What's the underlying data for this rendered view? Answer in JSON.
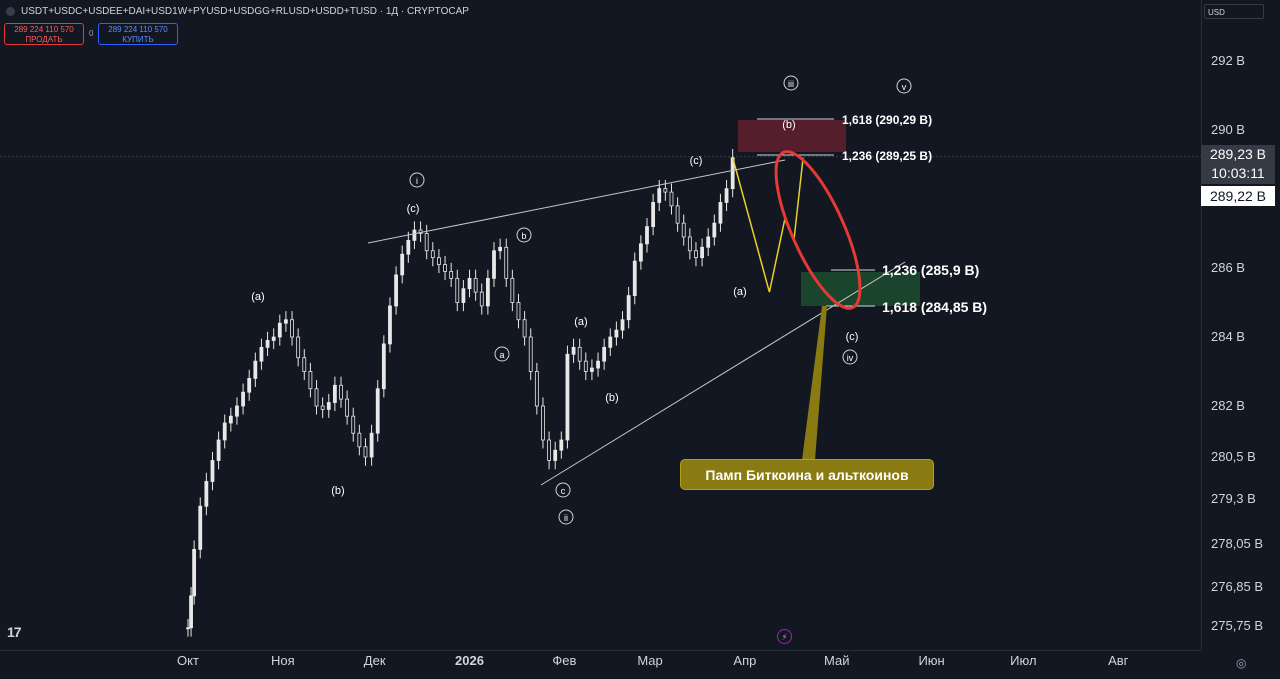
{
  "header": {
    "symbol_line": "USDT+USDC+USDEE+DAI+USD1W+PYUSD+USDGG+RLUSD+USDD+TUSD · 1Д · CRYPTOCAP",
    "sell_value": "289 224 110 570",
    "sell_label": "ПРОДАТЬ",
    "spread": "0",
    "buy_value": "289 224 110 570",
    "buy_label": "КУПИТЬ"
  },
  "axis": {
    "currency": "USD",
    "current_price": "289,23 B",
    "countdown": "10:03:11",
    "second_price": "289,22 B"
  },
  "annotations": {
    "callout": "Памп Биткоина и альткоинов",
    "fib_upper_1618": "1,618 (290,29 B)",
    "fib_upper_1236": "1,236 (289,25 B)",
    "fib_lower_1236": "1,236 (285,9 B)",
    "fib_lower_1618": "1,618 (284,85 B)"
  },
  "chart_data": {
    "type": "candlestick",
    "title": "USDT+USDC+USDEE+DAI+USD1W+PYUSD+USDGG+RLUSD+USDD+TUSD · 1Д · CRYPTOCAP",
    "xlabel": "",
    "ylabel": "",
    "x_ticks": [
      "Окт",
      "Ноя",
      "Дек",
      "2026",
      "Фев",
      "Мар",
      "Апр",
      "Май",
      "Июн",
      "Июл",
      "Авг"
    ],
    "y_ticks": [
      "292 B",
      "290 B",
      "286 B",
      "284 B",
      "282 B",
      "280,5 B",
      "279,3 B",
      "278,05 B",
      "276,85 B",
      "275,75 B"
    ],
    "y_tick_values": [
      292,
      290,
      286,
      284,
      282,
      280.5,
      279.3,
      278.05,
      276.85,
      275.75
    ],
    "colors": {
      "candles": "#e8e8e8",
      "background": "#131722",
      "ellipse": "#e53935",
      "projection": "#e8d12a",
      "target_zone_upper": "#5c1f2d",
      "target_zone_lower": "#1c4a2e"
    },
    "series": [
      {
        "points": [
          [
            "2025-10-01",
            275.7
          ],
          [
            "2025-10-02",
            276.6
          ],
          [
            "2025-10-03",
            277.9
          ],
          [
            "2025-10-05",
            279.1
          ],
          [
            "2025-10-07",
            279.8
          ],
          [
            "2025-10-09",
            280.4
          ],
          [
            "2025-10-11",
            281.0
          ],
          [
            "2025-10-13",
            281.5
          ],
          [
            "2025-10-15",
            281.7
          ],
          [
            "2025-10-17",
            282.0
          ],
          [
            "2025-10-19",
            282.4
          ],
          [
            "2025-10-21",
            282.8
          ],
          [
            "2025-10-23",
            283.3
          ],
          [
            "2025-10-25",
            283.7
          ],
          [
            "2025-10-27",
            283.9
          ],
          [
            "2025-10-29",
            284.0
          ],
          [
            "2025-10-31",
            284.4
          ],
          [
            "2025-11-02",
            284.5
          ],
          [
            "2025-11-04",
            284.0
          ],
          [
            "2025-11-06",
            283.4
          ],
          [
            "2025-11-08",
            283.0
          ],
          [
            "2025-11-10",
            282.5
          ],
          [
            "2025-11-12",
            282.0
          ],
          [
            "2025-11-14",
            281.9
          ],
          [
            "2025-11-16",
            282.1
          ],
          [
            "2025-11-18",
            282.6
          ],
          [
            "2025-11-20",
            282.2
          ],
          [
            "2025-11-22",
            281.7
          ],
          [
            "2025-11-24",
            281.2
          ],
          [
            "2025-11-26",
            280.8
          ],
          [
            "2025-11-28",
            280.5
          ],
          [
            "2025-11-30",
            281.2
          ],
          [
            "2025-12-02",
            282.5
          ],
          [
            "2025-12-04",
            283.8
          ],
          [
            "2025-12-06",
            284.9
          ],
          [
            "2025-12-08",
            285.8
          ],
          [
            "2025-12-10",
            286.4
          ],
          [
            "2025-12-12",
            286.8
          ],
          [
            "2025-12-14",
            287.1
          ],
          [
            "2025-12-16",
            287.0
          ],
          [
            "2025-12-18",
            286.5
          ],
          [
            "2025-12-20",
            286.3
          ],
          [
            "2025-12-22",
            286.1
          ],
          [
            "2025-12-24",
            285.9
          ],
          [
            "2025-12-26",
            285.7
          ],
          [
            "2025-12-28",
            285.0
          ],
          [
            "2025-12-30",
            285.4
          ],
          [
            "2026-01-01",
            285.7
          ],
          [
            "2026-01-03",
            285.3
          ],
          [
            "2026-01-05",
            284.9
          ],
          [
            "2026-01-07",
            285.7
          ],
          [
            "2026-01-09",
            286.5
          ],
          [
            "2026-01-11",
            286.6
          ],
          [
            "2026-01-13",
            285.7
          ],
          [
            "2026-01-15",
            285.0
          ],
          [
            "2026-01-17",
            284.5
          ],
          [
            "2026-01-19",
            284.0
          ],
          [
            "2026-01-21",
            283.0
          ],
          [
            "2026-01-23",
            282.0
          ],
          [
            "2026-01-25",
            281.0
          ],
          [
            "2026-01-27",
            280.4
          ],
          [
            "2026-01-29",
            280.7
          ],
          [
            "2026-01-31",
            281.0
          ],
          [
            "2026-02-02",
            283.5
          ],
          [
            "2026-02-04",
            283.7
          ],
          [
            "2026-02-06",
            283.3
          ],
          [
            "2026-02-08",
            283.0
          ],
          [
            "2026-02-10",
            283.1
          ],
          [
            "2026-02-12",
            283.3
          ],
          [
            "2026-02-14",
            283.7
          ],
          [
            "2026-02-16",
            284.0
          ],
          [
            "2026-02-18",
            284.2
          ],
          [
            "2026-02-20",
            284.5
          ],
          [
            "2026-02-22",
            285.2
          ],
          [
            "2026-02-24",
            286.2
          ],
          [
            "2026-02-26",
            286.7
          ],
          [
            "2026-02-28",
            287.2
          ],
          [
            "2026-03-02",
            287.9
          ],
          [
            "2026-03-04",
            288.3
          ],
          [
            "2026-03-06",
            288.2
          ],
          [
            "2026-03-08",
            287.8
          ],
          [
            "2026-03-10",
            287.3
          ],
          [
            "2026-03-12",
            286.9
          ],
          [
            "2026-03-14",
            286.5
          ],
          [
            "2026-03-16",
            286.3
          ],
          [
            "2026-03-18",
            286.6
          ],
          [
            "2026-03-20",
            286.9
          ],
          [
            "2026-03-22",
            287.3
          ],
          [
            "2026-03-24",
            287.9
          ],
          [
            "2026-03-26",
            288.3
          ],
          [
            "2026-03-28",
            289.2
          ]
        ]
      }
    ],
    "projection_path": [
      [
        "2026-03-28",
        289.2
      ],
      [
        "2026-04-09",
        285.3
      ],
      [
        "2026-04-14",
        287.4
      ],
      [
        "2026-04-17",
        286.8
      ],
      [
        "2026-04-20",
        289.2
      ]
    ],
    "wave_labels": [
      "(a)",
      "(b)",
      "(c)",
      "(a)",
      "(b)",
      "(a)",
      "(b)",
      "(c)",
      "(a)",
      "(b)",
      "(c)",
      "a",
      "b",
      "c",
      "i",
      "ii",
      "iii",
      "iv",
      "v"
    ]
  }
}
